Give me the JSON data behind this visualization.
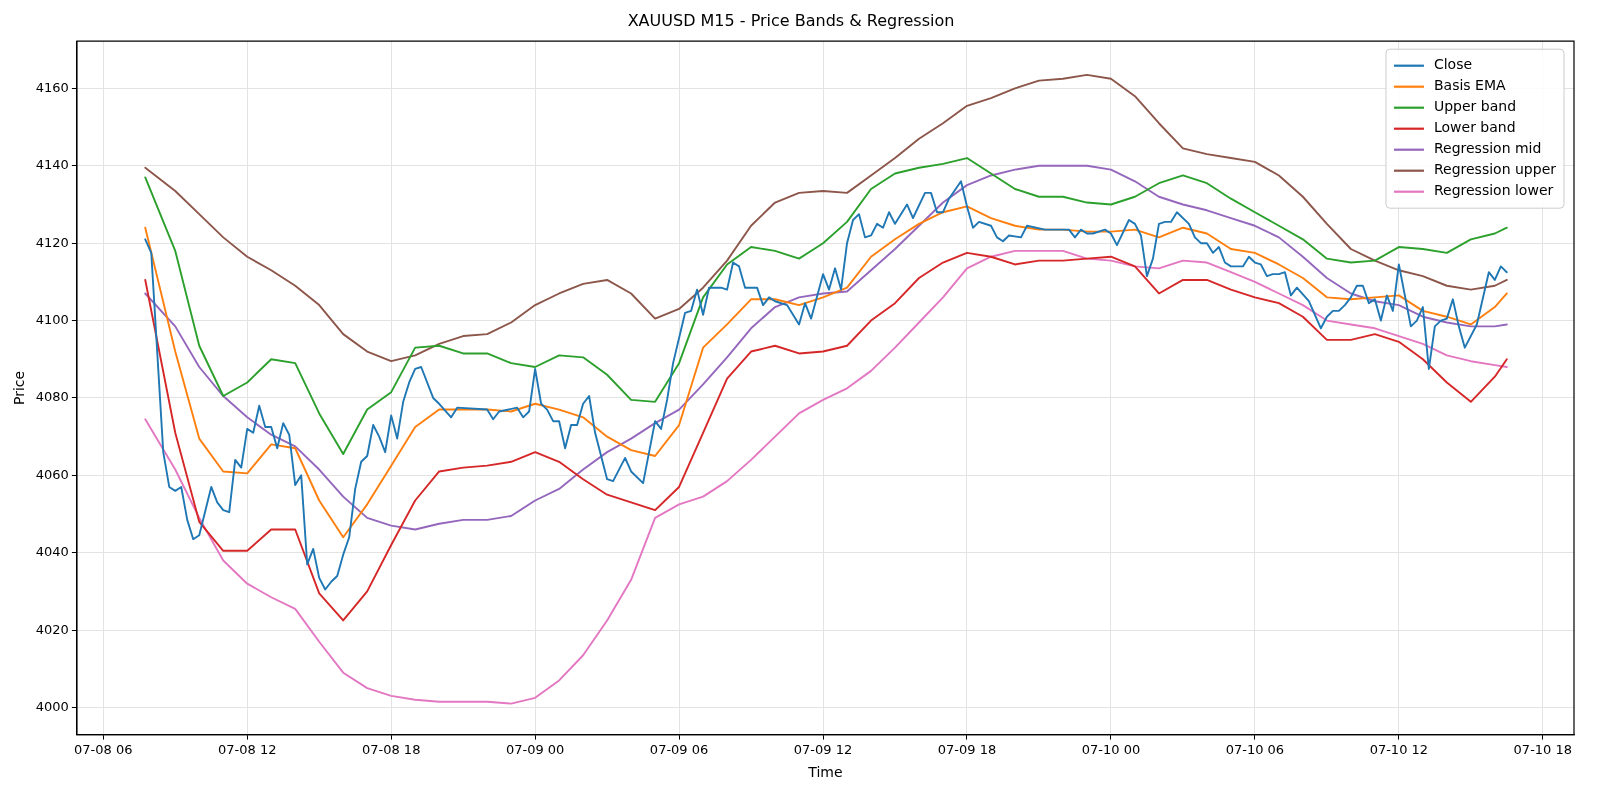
{
  "chart_data": {
    "type": "line",
    "title": "XAUUSD M15 - Price Bands & Regression",
    "xlabel": "Time",
    "ylabel": "Price",
    "xlim": [
      "--07-08T04:54",
      "--07-10T19:18"
    ],
    "ylim": [
      3993,
      4172.2
    ],
    "xticks": [
      {
        "value": "--07-08T06:00",
        "label": "07-08 06"
      },
      {
        "value": "--07-08T12:00",
        "label": "07-08 12"
      },
      {
        "value": "--07-08T18:00",
        "label": "07-08 18"
      },
      {
        "value": "--07-09T00:00",
        "label": "07-09 00"
      },
      {
        "value": "--07-09T06:00",
        "label": "07-09 06"
      },
      {
        "value": "--07-09T12:00",
        "label": "07-09 12"
      },
      {
        "value": "--07-09T18:00",
        "label": "07-09 18"
      },
      {
        "value": "--07-10T00:00",
        "label": "07-10 00"
      },
      {
        "value": "--07-10T06:00",
        "label": "07-10 06"
      },
      {
        "value": "--07-10T12:00",
        "label": "07-10 12"
      },
      {
        "value": "--07-10T18:00",
        "label": "07-10 18"
      }
    ],
    "yticks": [
      4000,
      4020,
      4040,
      4060,
      4080,
      4100,
      4120,
      4140,
      4160
    ],
    "grid": true,
    "legend": "top right",
    "marker": "none",
    "line_style": "solid",
    "x": [
      "--07-08T07:45",
      "--07-08T09:00",
      "--07-08T10:00",
      "--07-08T11:00",
      "--07-08T12:00",
      "--07-08T13:00",
      "--07-08T14:00",
      "--07-08T15:00",
      "--07-08T16:00",
      "--07-08T17:00",
      "--07-08T18:00",
      "--07-08T19:00",
      "--07-08T20:00",
      "--07-08T21:00",
      "--07-08T22:00",
      "--07-08T23:00",
      "--07-09T00:00",
      "--07-09T01:00",
      "--07-09T02:00",
      "--07-09T03:00",
      "--07-09T04:00",
      "--07-09T05:00",
      "--07-09T06:00",
      "--07-09T07:00",
      "--07-09T08:00",
      "--07-09T09:00",
      "--07-09T10:00",
      "--07-09T11:00",
      "--07-09T12:00",
      "--07-09T13:00",
      "--07-09T14:00",
      "--07-09T15:00",
      "--07-09T16:00",
      "--07-09T17:00",
      "--07-09T18:00",
      "--07-09T19:00",
      "--07-09T20:00",
      "--07-09T21:00",
      "--07-09T22:00",
      "--07-09T23:00",
      "--07-10T00:00",
      "--07-10T01:00",
      "--07-10T02:00",
      "--07-10T03:00",
      "--07-10T04:00",
      "--07-10T05:00",
      "--07-10T06:00",
      "--07-10T07:00",
      "--07-10T08:00",
      "--07-10T09:00",
      "--07-10T10:00",
      "--07-10T11:00",
      "--07-10T12:00",
      "--07-10T13:00",
      "--07-10T14:00",
      "--07-10T15:00",
      "--07-10T16:00",
      "--07-10T16:30"
    ],
    "series": [
      {
        "name": "Close",
        "color": "#1f77b4",
        "x": [
          "--07-08T07:45",
          "--07-08T08:00",
          "--07-08T08:30",
          "--07-08T08:45",
          "--07-08T09:00",
          "--07-08T09:15",
          "--07-08T09:30",
          "--07-08T09:45",
          "--07-08T10:00",
          "--07-08T10:30",
          "--07-08T10:45",
          "--07-08T11:00",
          "--07-08T11:15",
          "--07-08T11:30",
          "--07-08T11:45",
          "--07-08T12:00",
          "--07-08T12:15",
          "--07-08T12:30",
          "--07-08T12:45",
          "--07-08T13:00",
          "--07-08T13:15",
          "--07-08T13:30",
          "--07-08T13:45",
          "--07-08T14:00",
          "--07-08T14:15",
          "--07-08T14:30",
          "--07-08T14:45",
          "--07-08T15:00",
          "--07-08T15:15",
          "--07-08T15:30",
          "--07-08T15:45",
          "--07-08T16:00",
          "--07-08T16:15",
          "--07-08T16:30",
          "--07-08T16:45",
          "--07-08T17:00",
          "--07-08T17:15",
          "--07-08T17:30",
          "--07-08T17:45",
          "--07-08T18:00",
          "--07-08T18:15",
          "--07-08T18:30",
          "--07-08T18:45",
          "--07-08T19:00",
          "--07-08T19:15",
          "--07-08T19:45",
          "--07-08T20:00",
          "--07-08T20:30",
          "--07-08T20:45",
          "--07-08T22:00",
          "--07-08T22:15",
          "--07-08T22:30",
          "--07-08T23:15",
          "--07-08T23:30",
          "--07-08T23:45",
          "--07-09T00:00",
          "--07-09T00:15",
          "--07-09T00:30",
          "--07-09T00:45",
          "--07-09T01:00",
          "--07-09T01:15",
          "--07-09T01:30",
          "--07-09T01:45",
          "--07-09T02:00",
          "--07-09T02:15",
          "--07-09T02:30",
          "--07-09T03:00",
          "--07-09T03:15",
          "--07-09T03:45",
          "--07-09T04:00",
          "--07-09T04:30",
          "--07-09T05:00",
          "--07-09T05:15",
          "--07-09T05:30",
          "--07-09T05:45",
          "--07-09T06:15",
          "--07-09T06:30",
          "--07-09T06:45",
          "--07-09T07:00",
          "--07-09T07:15",
          "--07-09T07:45",
          "--07-09T08:00",
          "--07-09T08:15",
          "--07-09T08:30",
          "--07-09T08:45",
          "--07-09T09:15",
          "--07-09T09:30",
          "--07-09T09:45",
          "--07-09T10:00",
          "--07-09T10:30",
          "--07-09T11:00",
          "--07-09T11:15",
          "--07-09T11:30",
          "--07-09T12:00",
          "--07-09T12:15",
          "--07-09T12:30",
          "--07-09T12:45",
          "--07-09T13:00",
          "--07-09T13:15",
          "--07-09T13:30",
          "--07-09T13:45",
          "--07-09T14:00",
          "--07-09T14:15",
          "--07-09T14:30",
          "--07-09T14:45",
          "--07-09T15:00",
          "--07-09T15:30",
          "--07-09T15:45",
          "--07-09T16:15",
          "--07-09T16:30",
          "--07-09T16:45",
          "--07-09T17:00",
          "--07-09T17:15",
          "--07-09T17:45",
          "--07-09T18:00",
          "--07-09T18:15",
          "--07-09T18:30",
          "--07-09T19:00",
          "--07-09T19:15",
          "--07-09T19:30",
          "--07-09T19:45",
          "--07-09T20:15",
          "--07-09T20:30",
          "--07-09T21:15",
          "--07-09T22:00",
          "--07-09T22:15",
          "--07-09T22:30",
          "--07-09T22:45",
          "--07-09T23:00",
          "--07-09T23:15",
          "--07-09T23:45",
          "--07-10T00:00",
          "--07-10T00:15",
          "--07-10T00:45",
          "--07-10T01:00",
          "--07-10T01:15",
          "--07-10T01:30",
          "--07-10T01:45",
          "--07-10T02:00",
          "--07-10T02:15",
          "--07-10T02:30",
          "--07-10T02:45",
          "--07-10T03:15",
          "--07-10T03:30",
          "--07-10T03:45",
          "--07-10T04:00",
          "--07-10T04:15",
          "--07-10T04:30",
          "--07-10T04:45",
          "--07-10T05:00",
          "--07-10T05:30",
          "--07-10T05:45",
          "--07-10T06:00",
          "--07-10T06:15",
          "--07-10T06:30",
          "--07-10T06:45",
          "--07-10T07:00",
          "--07-10T07:15",
          "--07-10T07:30",
          "--07-10T07:45",
          "--07-10T08:15",
          "--07-10T08:45",
          "--07-10T09:00",
          "--07-10T09:15",
          "--07-10T09:30",
          "--07-10T09:45",
          "--07-10T10:00",
          "--07-10T10:15",
          "--07-10T10:30",
          "--07-10T10:45",
          "--07-10T11:00",
          "--07-10T11:15",
          "--07-10T11:30",
          "--07-10T11:45",
          "--07-10T12:00",
          "--07-10T12:30",
          "--07-10T12:45",
          "--07-10T13:00",
          "--07-10T13:15",
          "--07-10T13:30",
          "--07-10T13:45",
          "--07-10T14:00",
          "--07-10T14:15",
          "--07-10T14:30",
          "--07-10T14:45",
          "--07-10T15:15",
          "--07-10T15:45",
          "--07-10T16:00",
          "--07-10T16:15",
          "--07-10T16:30"
        ],
        "values": [
          4121,
          4117.5,
          4066,
          4057,
          4056,
          4057,
          4048.5,
          4043.5,
          4044.5,
          4057,
          4053,
          4051,
          4050.5,
          4064,
          4062,
          4072,
          4071,
          4078,
          4072.5,
          4072.5,
          4067,
          4073.5,
          4070.5,
          4057.5,
          4060,
          4037,
          4041,
          4033.5,
          4030.5,
          4032.5,
          4034,
          4039.5,
          4044,
          4056.5,
          4063.5,
          4065,
          4073,
          4070,
          4066,
          4075.5,
          4069.5,
          4079,
          4084,
          4087.5,
          4088,
          4080,
          4078.5,
          4075,
          4077.5,
          4077,
          4074.5,
          4076.5,
          4077.5,
          4075,
          4076.5,
          4087.5,
          4078.5,
          4077,
          4074,
          4074,
          4067,
          4073,
          4073,
          4078.5,
          4080.5,
          4071,
          4059,
          4058.5,
          4064.5,
          4061,
          4058,
          4074,
          4072,
          4079.5,
          4089,
          4102,
          4102.5,
          4108,
          4101.5,
          4108.5,
          4108.5,
          4108,
          4115,
          4114,
          4108.5,
          4108.5,
          4104,
          4106,
          4105,
          4104,
          4099,
          4104.5,
          4100.5,
          4112,
          4108,
          4113.5,
          4108,
          4120,
          4126,
          4127.5,
          4121.5,
          4122,
          4125,
          4124,
          4128,
          4125,
          4130,
          4126.5,
          4133,
          4133,
          4128,
          4128,
          4131.5,
          4136,
          4129.5,
          4124,
          4125.5,
          4124.5,
          4121.5,
          4120.5,
          4122,
          4121.5,
          4124.5,
          4123.5,
          4123.5,
          4123.5,
          4121.5,
          4123.5,
          4122.5,
          4122.5,
          4123.5,
          4122.5,
          4119.5,
          4126,
          4125,
          4122,
          4111.5,
          4116,
          4125,
          4125.5,
          4125.5,
          4128,
          4125,
          4121.5,
          4120,
          4120,
          4117.5,
          4119,
          4115,
          4114,
          4114,
          4116.5,
          4115,
          4114.5,
          4111.5,
          4112,
          4112,
          4112.5,
          4106.5,
          4108.5,
          4105,
          4098,
          4101,
          4102.5,
          4102.5,
          4104,
          4106,
          4109,
          4109,
          4104.5,
          4105.5,
          4100,
          4106.5,
          4102.5,
          4114.5,
          4098.5,
          4100,
          4103.5,
          4087.5,
          4098.5,
          4100,
          4100.5,
          4105.5,
          4098.5,
          4093,
          4099,
          4112.5,
          4110.5,
          4114,
          4112.5
        ]
      },
      {
        "name": "Basis EMA",
        "color": "#ff7f0e",
        "values": [
          4124,
          4092,
          4069.5,
          4061,
          4060.5,
          4068,
          4067,
          4053.5,
          4044,
          4052.5,
          4062.5,
          4072.5,
          4077,
          4077,
          4077,
          4076.5,
          4078.5,
          4077,
          4075,
          4070,
          4066.5,
          4065,
          4073,
          4093,
          4099,
          4105.5,
          4105.5,
          4104,
          4106,
          4108.5,
          4116.5,
          4121,
          4125,
          4128,
          4129.5,
          4126.5,
          4124.5,
          4123.5,
          4123.5,
          4123,
          4123,
          4123.5,
          4121.5,
          4124,
          4122.5,
          4118.5,
          4117.5,
          4114.5,
          4111,
          4106,
          4105.5,
          4106,
          4106.5,
          4102.5,
          4101,
          4099,
          4103.5,
          4107
        ]
      },
      {
        "name": "Upper band",
        "color": "#2ca02c",
        "values": [
          4137,
          4118,
          4093.5,
          4080.5,
          4084,
          4090,
          4089,
          4076,
          4065.5,
          4077,
          4081.5,
          4093,
          4093.5,
          4091.5,
          4091.5,
          4089,
          4088,
          4091,
          4090.5,
          4086,
          4079.5,
          4079,
          4089,
          4106,
          4114.5,
          4119,
          4118,
          4116,
          4120,
          4125.5,
          4134,
          4138,
          4139.5,
          4140.5,
          4142,
          4138,
          4134,
          4132,
          4132,
          4130.5,
          4130,
          4132,
          4135.5,
          4137.5,
          4135.5,
          4131.5,
          4128,
          4124.5,
          4121,
          4116,
          4115,
          4115.5,
          4119,
          4118.5,
          4117.5,
          4121,
          4122.5,
          4124
        ]
      },
      {
        "name": "Lower band",
        "color": "#d62728",
        "values": [
          4110.5,
          4071,
          4048,
          4040.5,
          4040.5,
          4046,
          4046,
          4029.5,
          4022.5,
          4030,
          4042,
          4053.5,
          4061,
          4062,
          4062.5,
          4063.5,
          4066,
          4063.5,
          4059,
          4055,
          4053,
          4051,
          4057,
          4071,
          4085,
          4092,
          4093.5,
          4091.5,
          4092,
          4093.5,
          4100,
          4104.5,
          4111,
          4115,
          4117.5,
          4116.5,
          4114.5,
          4115.5,
          4115.5,
          4116,
          4116.5,
          4114,
          4107,
          4110.5,
          4110.5,
          4108,
          4106,
          4104.5,
          4101,
          4095,
          4095,
          4096.5,
          4094.5,
          4090,
          4084,
          4079,
          4085.5,
          4090
        ]
      },
      {
        "name": "Regression mid",
        "color": "#9467bd",
        "values": [
          4107,
          4098.5,
          4088,
          4080.5,
          4075,
          4070.5,
          4067.5,
          4061.5,
          4054.5,
          4049,
          4047,
          4046,
          4047.5,
          4048.5,
          4048.5,
          4049.5,
          4053.5,
          4056.5,
          4061.5,
          4066,
          4069.5,
          4073.5,
          4077,
          4083.5,
          4090.5,
          4098,
          4103.5,
          4106,
          4107,
          4107.5,
          4113,
          4118.5,
          4124.5,
          4130.5,
          4135,
          4137.5,
          4139,
          4140,
          4140,
          4140,
          4139,
          4136,
          4132,
          4130,
          4128.5,
          4126.5,
          4124.5,
          4121.5,
          4116.5,
          4111,
          4107,
          4105,
          4104,
          4101,
          4099.5,
          4098.5,
          4098.5,
          4099
        ]
      },
      {
        "name": "Regression upper",
        "color": "#8c564b",
        "values": [
          4139.5,
          4133.5,
          4127.5,
          4121.5,
          4116.5,
          4113,
          4109,
          4104,
          4096.5,
          4092,
          4089.5,
          4091,
          4094,
          4096,
          4096.5,
          4099.5,
          4104,
          4107,
          4109.5,
          4110.5,
          4107,
          4100.5,
          4103,
          4108.5,
          4115.5,
          4124.5,
          4130.5,
          4133,
          4133.5,
          4133,
          4137.5,
          4142,
          4147,
          4151,
          4155.5,
          4157.5,
          4160,
          4162,
          4162.5,
          4163.5,
          4162.5,
          4158,
          4151,
          4144.5,
          4143,
          4142,
          4141,
          4137.5,
          4132,
          4125,
          4118.5,
          4115.5,
          4113,
          4111.5,
          4109,
          4108,
          4109,
          4110.5
        ]
      },
      {
        "name": "Regression lower",
        "color": "#e377c2",
        "values": [
          4074.5,
          4061.5,
          4049,
          4038,
          4032,
          4028.5,
          4025.5,
          4017,
          4009,
          4005,
          4003,
          4002,
          4001.5,
          4001.5,
          4001.5,
          4001,
          4002.5,
          4007,
          4013.5,
          4022.5,
          4033,
          4049,
          4052.5,
          4054.5,
          4058.5,
          4064,
          4070,
          4076,
          4079.5,
          4082.5,
          4087,
          4093,
          4099.5,
          4106,
          4113.5,
          4116.5,
          4118,
          4118,
          4118,
          4116,
          4115.5,
          4114,
          4113.5,
          4115.5,
          4115,
          4112.5,
          4110,
          4107,
          4104,
          4100,
          4099,
          4098,
          4096,
          4094,
          4091,
          4089.5,
          4088.5,
          4088
        ]
      }
    ]
  }
}
